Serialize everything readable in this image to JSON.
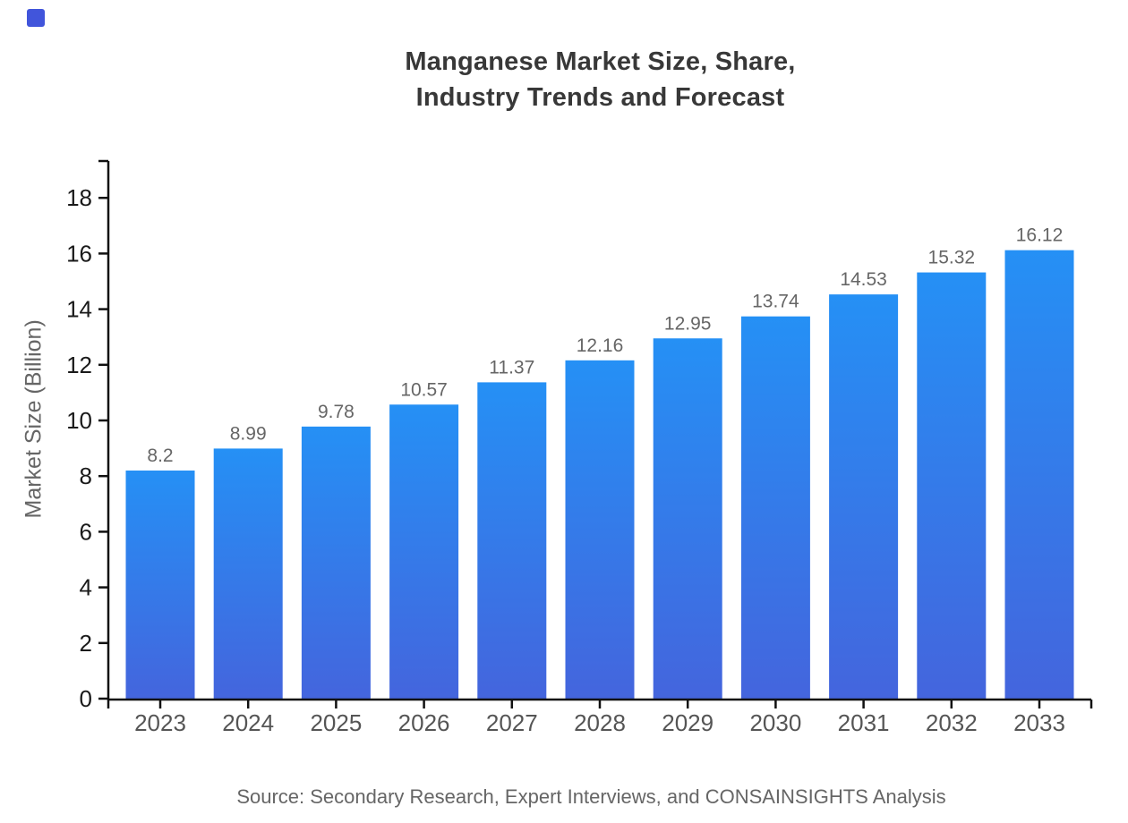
{
  "page": {
    "title_line1": "Manganese Market Size, Share,",
    "title_line2": "Industry Trends and Forecast",
    "source_note": "Source: Secondary Research, Expert Interviews, and CONSAINSIGHTS Analysis"
  },
  "brand": {
    "logo_color": "#4155db"
  },
  "chart_data": {
    "type": "bar",
    "title": "Manganese Market Size, Share, Industry Trends and Forecast",
    "categories": [
      "2023",
      "2024",
      "2025",
      "2026",
      "2027",
      "2028",
      "2029",
      "2030",
      "2031",
      "2032",
      "2033"
    ],
    "values": [
      8.2,
      8.99,
      9.78,
      10.57,
      11.37,
      12.16,
      12.95,
      13.74,
      14.53,
      15.32,
      16.12
    ],
    "xlabel": "",
    "ylabel": "Market Size (Billion)",
    "ylim": [
      0,
      19.3
    ],
    "yticks": [
      0,
      2,
      4,
      6,
      8,
      10,
      12,
      14,
      16,
      18
    ],
    "grid": false,
    "legend": "none",
    "annotations": [
      "Source: Secondary Research, Expert Interviews, and CONSAINSIGHTS Analysis"
    ],
    "colors": {
      "bar_gradient_top": "#2590f5",
      "bar_gradient_bottom": "#4465dd",
      "axis": "#111111",
      "value_label": "#666666",
      "x_tick_label": "#555555",
      "y_tick_label": "#1a1a1a",
      "axis_title": "#666666"
    }
  }
}
